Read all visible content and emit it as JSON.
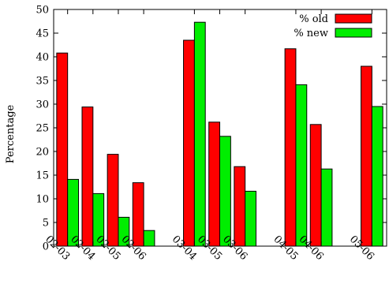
{
  "chart_data": {
    "type": "bar",
    "title": "",
    "ylabel": "Percentage",
    "xlabel": "",
    "ylim": [
      0,
      50
    ],
    "yticks": [
      0,
      5,
      10,
      15,
      20,
      25,
      30,
      35,
      40,
      45,
      50
    ],
    "grid": false,
    "legend_position": "top-right",
    "categories": [
      "02-03",
      "02-04",
      "02-05",
      "02-06",
      "03-04",
      "03-05",
      "03-06",
      "04-05",
      "04-06",
      "05-06"
    ],
    "group_breaks_after": [
      "02-06",
      "03-06",
      "04-06"
    ],
    "series": [
      {
        "name": "% old",
        "color": "#ff0000",
        "values": [
          40.8,
          29.4,
          19.4,
          13.4,
          43.5,
          26.2,
          16.8,
          41.7,
          25.7,
          38.0
        ]
      },
      {
        "name": "% new",
        "color": "#00ee00",
        "values": [
          14.1,
          11.1,
          6.1,
          3.3,
          47.3,
          23.2,
          11.6,
          34.1,
          16.3,
          29.5
        ]
      }
    ]
  }
}
